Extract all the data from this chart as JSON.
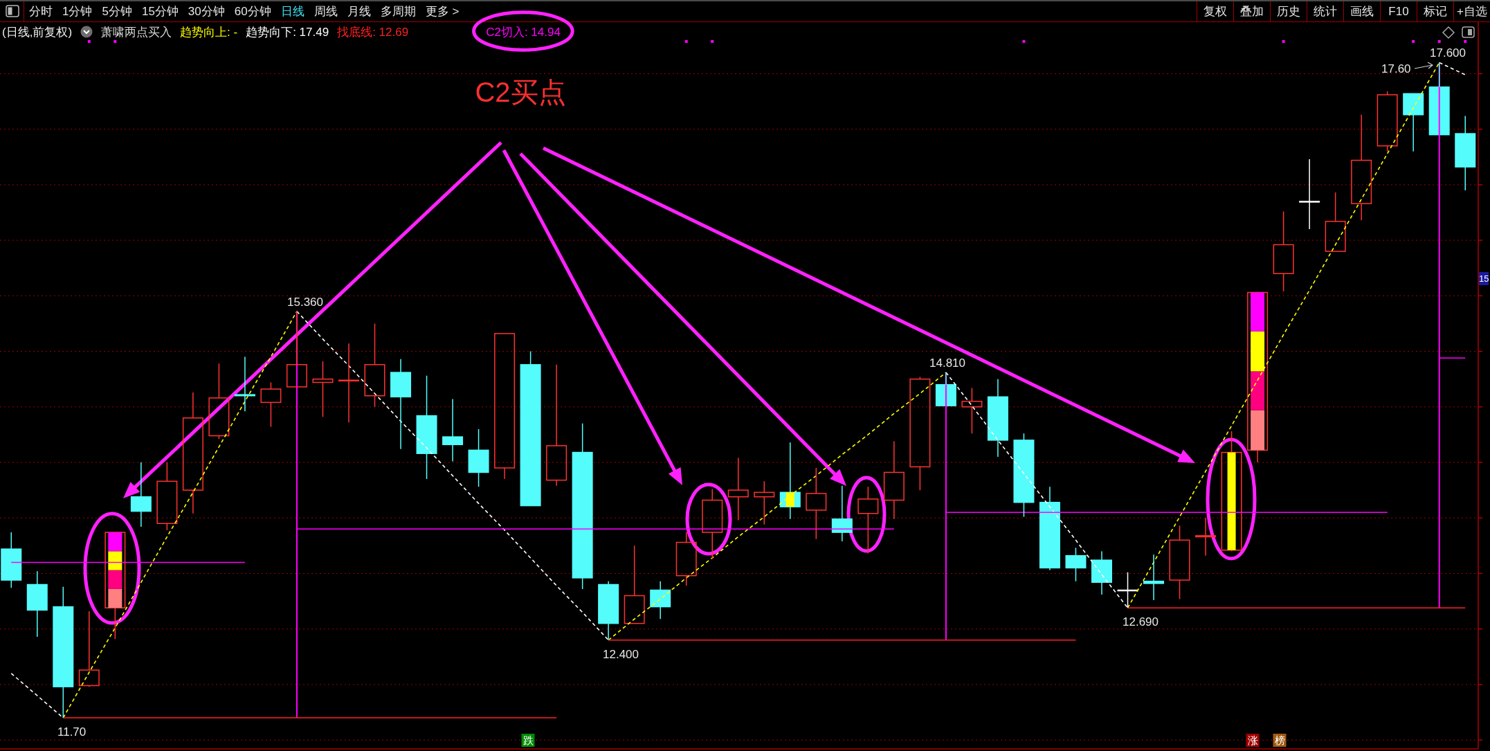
{
  "chart_data": {
    "type": "candlestick",
    "title": "(日线,前复权)",
    "subtitle": "萧啸两点买入",
    "categories": [
      null,
      null,
      null,
      null,
      null,
      null,
      null,
      null,
      null,
      null,
      null,
      null,
      null,
      null,
      null,
      null,
      null,
      null,
      null,
      null,
      null,
      null,
      null,
      null,
      null,
      null,
      null,
      null,
      null,
      null,
      null,
      null,
      null,
      null,
      null,
      null,
      null,
      null,
      null,
      null,
      null,
      null,
      null,
      null,
      null,
      null,
      null,
      null,
      null,
      null,
      null,
      null,
      null,
      null,
      null,
      null,
      null
    ],
    "ohlc": [
      [
        13.22,
        13.37,
        12.87,
        12.94
      ],
      [
        12.9,
        13.02,
        12.43,
        12.67
      ],
      [
        12.7,
        12.88,
        11.7,
        11.98
      ],
      [
        11.99,
        12.66,
        11.98,
        12.13
      ],
      [
        12.69,
        13.37,
        12.41,
        13.37
      ],
      [
        13.69,
        14.0,
        13.42,
        13.56
      ],
      [
        13.45,
        14.0,
        13.39,
        13.83
      ],
      [
        13.75,
        14.63,
        13.54,
        14.4
      ],
      [
        14.24,
        14.89,
        14.21,
        14.58
      ],
      [
        14.61,
        14.95,
        14.46,
        14.6
      ],
      [
        14.54,
        14.72,
        14.32,
        14.66
      ],
      [
        14.68,
        15.36,
        14.67,
        14.88
      ],
      [
        14.72,
        14.91,
        14.41,
        14.75
      ],
      [
        14.74,
        15.07,
        14.36,
        14.74
      ],
      [
        14.6,
        15.25,
        14.5,
        14.88
      ],
      [
        14.81,
        14.93,
        14.12,
        14.59
      ],
      [
        14.42,
        14.78,
        13.85,
        14.08
      ],
      [
        14.23,
        14.57,
        14.01,
        14.16
      ],
      [
        14.11,
        14.3,
        13.78,
        13.91
      ],
      [
        13.95,
        15.16,
        13.85,
        15.16
      ],
      [
        14.88,
        15.0,
        13.61,
        13.61
      ],
      [
        13.84,
        14.88,
        13.79,
        14.15
      ],
      [
        14.09,
        14.35,
        12.86,
        12.96
      ],
      [
        12.9,
        12.93,
        12.4,
        12.55
      ],
      [
        12.55,
        13.25,
        12.55,
        12.8
      ],
      [
        12.85,
        12.93,
        12.59,
        12.7
      ],
      [
        12.98,
        13.37,
        12.89,
        13.28
      ],
      [
        13.37,
        13.76,
        13.13,
        13.66
      ],
      [
        13.69,
        14.04,
        13.48,
        13.75
      ],
      [
        13.69,
        13.83,
        13.44,
        13.73
      ],
      [
        13.73,
        14.18,
        13.49,
        13.6
      ],
      [
        13.57,
        13.95,
        13.31,
        13.72
      ],
      [
        13.49,
        13.79,
        13.29,
        13.37
      ],
      [
        13.54,
        13.78,
        13.18,
        13.67
      ],
      [
        13.66,
        14.19,
        13.49,
        13.91
      ],
      [
        13.96,
        14.77,
        13.75,
        14.75
      ],
      [
        14.7,
        14.81,
        14.51,
        14.51
      ],
      [
        14.5,
        14.67,
        14.26,
        14.55
      ],
      [
        14.59,
        14.75,
        14.05,
        14.2
      ],
      [
        14.2,
        14.26,
        13.51,
        13.64
      ],
      [
        13.64,
        13.78,
        13.03,
        13.05
      ],
      [
        13.16,
        13.23,
        12.93,
        13.05
      ],
      [
        13.12,
        13.2,
        12.81,
        12.92
      ],
      [
        12.85,
        13.01,
        12.69,
        12.85
      ],
      [
        12.93,
        13.17,
        12.76,
        12.91
      ],
      [
        12.94,
        13.43,
        12.77,
        13.3
      ],
      [
        13.33,
        13.5,
        13.16,
        13.34
      ],
      [
        13.21,
        14.28,
        13.2,
        14.09
      ],
      [
        14.11,
        15.53,
        14.0,
        15.53
      ],
      [
        15.7,
        16.26,
        15.54,
        15.96
      ],
      [
        16.35,
        16.73,
        16.1,
        16.35
      ],
      [
        15.9,
        16.43,
        15.9,
        16.17
      ],
      [
        16.33,
        17.13,
        16.18,
        16.72
      ],
      [
        16.85,
        17.34,
        16.8,
        17.31
      ],
      [
        17.32,
        17.32,
        16.8,
        17.13
      ],
      [
        17.38,
        17.6,
        16.95,
        16.95
      ],
      [
        16.96,
        17.12,
        16.45,
        16.66
      ]
    ],
    "colors": [
      "#54fcfc",
      "#54fcfc",
      "#54fcfc",
      "#ff3232",
      "#ff3232",
      "#54fcfc",
      "#ff3232",
      "#ff3232",
      "#ff3232",
      "#54fcfc",
      "#ff3232",
      "#ff3232",
      "#ff3232",
      "#ff3232",
      "#ff3232",
      "#54fcfc",
      "#54fcfc",
      "#54fcfc",
      "#54fcfc",
      "#ff3232",
      "#54fcfc",
      "#ff3232",
      "#54fcfc",
      "#54fcfc",
      "#ff3232",
      "#54fcfc",
      "#ff3232",
      "#ff3232",
      "#ff3232",
      "#ff3232",
      "#54fcfc",
      "#ff3232",
      "#54fcfc",
      "#ff3232",
      "#ff3232",
      "#ff3232",
      "#54fcfc",
      "#ff3232",
      "#54fcfc",
      "#54fcfc",
      "#54fcfc",
      "#54fcfc",
      "#54fcfc",
      "#ffffff",
      "#54fcfc",
      "#ff3232",
      "#ff3232",
      "#ff3232",
      "#ff3232",
      "#ff3232",
      "#ffffff",
      "#ff3232",
      "#ff3232",
      "#ff3232",
      "#54fcfc",
      "#54fcfc",
      "#54fcfc"
    ],
    "series": [
      {
        "name": "趋势向上: -",
        "type": "line",
        "color": "#ffff00",
        "line_style": "dashed",
        "values": [
          null,
          null,
          11.7,
          12.11,
          12.51,
          12.92,
          13.33,
          13.73,
          14.14,
          14.55,
          14.95,
          15.36,
          null,
          null,
          null,
          null,
          null,
          null,
          null,
          null,
          null,
          null,
          null,
          12.4,
          12.59,
          12.77,
          12.96,
          13.14,
          13.33,
          13.51,
          13.7,
          13.88,
          14.07,
          14.25,
          14.44,
          14.62,
          14.81,
          null,
          null,
          null,
          null,
          null,
          null,
          12.69,
          13.1,
          13.51,
          13.92,
          14.33,
          14.74,
          15.15,
          15.55,
          15.96,
          16.37,
          16.78,
          17.19,
          17.6,
          null
        ]
      },
      {
        "name": "趋势向下: 17.49",
        "type": "line",
        "color": "#ffffff",
        "line_style": "dashed",
        "values": [
          12.1,
          11.9,
          11.7,
          null,
          null,
          null,
          null,
          null,
          null,
          null,
          null,
          15.36,
          15.11,
          14.87,
          14.62,
          14.37,
          14.13,
          13.88,
          13.63,
          13.39,
          13.14,
          12.89,
          12.65,
          12.4,
          null,
          null,
          null,
          null,
          null,
          null,
          null,
          null,
          null,
          null,
          null,
          null,
          14.81,
          14.51,
          14.2,
          13.9,
          13.6,
          13.3,
          12.99,
          12.69,
          null,
          null,
          null,
          null,
          null,
          null,
          null,
          null,
          null,
          null,
          null,
          17.6,
          17.49
        ]
      },
      {
        "name": "找底线: 12.69",
        "type": "line",
        "color": "#ff2020",
        "values": [
          null,
          null,
          11.7,
          11.7,
          11.7,
          11.7,
          11.7,
          11.7,
          11.7,
          11.7,
          11.7,
          11.7,
          11.7,
          11.7,
          11.7,
          11.7,
          11.7,
          11.7,
          11.7,
          11.7,
          11.7,
          11.7,
          null,
          12.4,
          12.4,
          12.4,
          12.4,
          12.4,
          12.4,
          12.4,
          12.4,
          12.4,
          12.4,
          12.4,
          12.4,
          12.4,
          12.4,
          12.4,
          12.4,
          12.4,
          12.4,
          12.4,
          null,
          12.69,
          12.69,
          12.69,
          12.69,
          12.69,
          12.69,
          12.69,
          12.69,
          12.69,
          12.69,
          12.69,
          12.69,
          12.69,
          12.69
        ]
      },
      {
        "name": "C2切入: 14.94",
        "type": "line",
        "color": "#ff00ff",
        "values": [
          13.1,
          13.1,
          13.1,
          13.1,
          13.1,
          13.1,
          13.1,
          13.1,
          13.1,
          13.1,
          null,
          13.4,
          13.4,
          13.4,
          13.4,
          13.4,
          13.4,
          13.4,
          13.4,
          13.4,
          13.4,
          13.4,
          13.4,
          13.4,
          13.4,
          13.4,
          13.4,
          13.4,
          13.4,
          13.4,
          13.4,
          13.4,
          13.4,
          13.4,
          13.4,
          null,
          13.55,
          13.55,
          13.55,
          13.55,
          13.55,
          13.55,
          13.55,
          13.55,
          13.55,
          13.55,
          13.55,
          13.55,
          13.55,
          13.55,
          13.55,
          13.55,
          13.55,
          13.55,
          null,
          14.94,
          14.94
        ]
      },
      {
        "type": "bar",
        "color": "#ff00ff",
        "values": [
          null,
          null,
          null,
          null,
          null,
          null,
          null,
          null,
          null,
          null,
          null,
          3.66,
          null,
          null,
          null,
          null,
          null,
          null,
          null,
          null,
          null,
          null,
          null,
          null,
          null,
          null,
          null,
          null,
          null,
          null,
          null,
          null,
          null,
          null,
          null,
          null,
          2.41,
          null,
          null,
          null,
          null,
          null,
          null,
          null,
          null,
          null,
          null,
          null,
          null,
          null,
          null,
          null,
          null,
          null,
          null,
          4.91,
          null
        ],
        "base": [
          null,
          null,
          null,
          null,
          null,
          null,
          null,
          null,
          null,
          null,
          null,
          11.7,
          null,
          null,
          null,
          null,
          null,
          null,
          null,
          null,
          null,
          null,
          null,
          null,
          null,
          null,
          null,
          null,
          null,
          null,
          null,
          null,
          null,
          null,
          null,
          null,
          12.4,
          null,
          null,
          null,
          null,
          null,
          null,
          null,
          null,
          null,
          null,
          null,
          null,
          null,
          null,
          null,
          null,
          null,
          null,
          12.69,
          null
        ]
      },
      {
        "type": "bar",
        "color": "#ff8080",
        "values": [
          null,
          null,
          null,
          null,
          0.17,
          null,
          null,
          null,
          null,
          null,
          null,
          null,
          null,
          null,
          null,
          null,
          null,
          null,
          null,
          null,
          null,
          null,
          null,
          null,
          null,
          null,
          null,
          null,
          null,
          null,
          null,
          null,
          null,
          null,
          null,
          null,
          null,
          null,
          null,
          null,
          null,
          null,
          null,
          null,
          null,
          null,
          null,
          null,
          0.36,
          null,
          null,
          null,
          null,
          null,
          null,
          null,
          null
        ],
        "base": [
          null,
          null,
          null,
          null,
          12.69,
          null,
          null,
          null,
          null,
          null,
          null,
          null,
          null,
          null,
          null,
          null,
          null,
          null,
          null,
          null,
          null,
          null,
          null,
          null,
          null,
          null,
          null,
          null,
          null,
          null,
          null,
          null,
          null,
          null,
          null,
          null,
          null,
          null,
          null,
          null,
          null,
          null,
          null,
          null,
          null,
          null,
          null,
          null,
          14.11,
          null,
          null,
          null,
          null,
          null,
          null,
          null,
          null
        ]
      },
      {
        "type": "bar",
        "color": "#ff0080",
        "values": [
          null,
          null,
          null,
          null,
          0.17,
          null,
          null,
          null,
          null,
          null,
          null,
          null,
          null,
          null,
          null,
          null,
          null,
          null,
          null,
          null,
          null,
          null,
          null,
          null,
          null,
          null,
          null,
          null,
          null,
          null,
          null,
          null,
          null,
          null,
          null,
          null,
          null,
          null,
          null,
          null,
          null,
          null,
          null,
          null,
          null,
          null,
          null,
          null,
          0.35,
          null,
          null,
          null,
          null,
          null,
          null,
          null,
          null
        ],
        "base": [
          null,
          null,
          null,
          null,
          12.86,
          null,
          null,
          null,
          null,
          null,
          null,
          null,
          null,
          null,
          null,
          null,
          null,
          null,
          null,
          null,
          null,
          null,
          null,
          null,
          null,
          null,
          null,
          null,
          null,
          null,
          null,
          null,
          null,
          null,
          null,
          null,
          null,
          null,
          null,
          null,
          null,
          null,
          null,
          null,
          null,
          null,
          null,
          null,
          14.47,
          null,
          null,
          null,
          null,
          null,
          null,
          null,
          null
        ]
      },
      {
        "type": "bar",
        "color": "#ffff00",
        "values": [
          null,
          null,
          null,
          null,
          0.17,
          null,
          null,
          null,
          null,
          null,
          null,
          null,
          null,
          null,
          null,
          null,
          null,
          null,
          null,
          null,
          null,
          null,
          null,
          null,
          null,
          null,
          null,
          null,
          null,
          null,
          null,
          null,
          null,
          null,
          null,
          null,
          null,
          null,
          null,
          null,
          null,
          null,
          null,
          null,
          null,
          null,
          null,
          null,
          0.36,
          null,
          null,
          null,
          null,
          null,
          null,
          null,
          null
        ],
        "base": [
          null,
          null,
          null,
          null,
          13.03,
          null,
          null,
          null,
          null,
          null,
          null,
          null,
          null,
          null,
          null,
          null,
          null,
          null,
          null,
          null,
          null,
          null,
          null,
          null,
          null,
          null,
          null,
          null,
          null,
          null,
          null,
          null,
          null,
          null,
          null,
          null,
          null,
          null,
          null,
          null,
          null,
          null,
          null,
          null,
          null,
          null,
          null,
          null,
          14.82,
          null,
          null,
          null,
          null,
          null,
          null,
          null,
          null
        ]
      },
      {
        "type": "bar",
        "color": "#ff00ff",
        "values": [
          null,
          null,
          null,
          null,
          0.17,
          null,
          null,
          null,
          null,
          null,
          null,
          null,
          null,
          null,
          null,
          null,
          null,
          null,
          null,
          null,
          null,
          null,
          null,
          null,
          null,
          null,
          null,
          null,
          null,
          null,
          null,
          null,
          null,
          null,
          null,
          null,
          null,
          null,
          null,
          null,
          null,
          null,
          null,
          null,
          null,
          null,
          null,
          null,
          0.35,
          null,
          null,
          null,
          null,
          null,
          null,
          null,
          null
        ],
        "base": [
          null,
          null,
          null,
          null,
          13.2,
          null,
          null,
          null,
          null,
          null,
          null,
          null,
          null,
          null,
          null,
          null,
          null,
          null,
          null,
          null,
          null,
          null,
          null,
          null,
          null,
          null,
          null,
          null,
          null,
          null,
          null,
          null,
          null,
          null,
          null,
          null,
          null,
          null,
          null,
          null,
          null,
          null,
          null,
          null,
          null,
          null,
          null,
          null,
          15.18,
          null,
          null,
          null,
          null,
          null,
          null,
          null,
          null
        ]
      },
      {
        "type": "bar",
        "color": "#ffff00",
        "values": [
          null,
          null,
          null,
          null,
          null,
          null,
          null,
          null,
          null,
          null,
          null,
          null,
          null,
          null,
          null,
          null,
          null,
          null,
          null,
          null,
          null,
          null,
          null,
          null,
          null,
          null,
          null,
          null,
          null,
          null,
          0.13,
          null,
          null,
          null,
          null,
          null,
          null,
          null,
          null,
          null,
          null,
          null,
          null,
          null,
          null,
          null,
          null,
          0.88,
          null,
          null,
          null,
          null,
          null,
          null,
          null,
          null,
          null
        ],
        "base": [
          null,
          null,
          null,
          null,
          null,
          null,
          null,
          null,
          null,
          null,
          null,
          null,
          null,
          null,
          null,
          null,
          null,
          null,
          null,
          null,
          null,
          null,
          null,
          null,
          null,
          null,
          null,
          null,
          null,
          null,
          13.6,
          null,
          null,
          null,
          null,
          null,
          null,
          null,
          null,
          null,
          null,
          null,
          null,
          null,
          null,
          null,
          null,
          13.21,
          null,
          null,
          null,
          null,
          null,
          null,
          null,
          null,
          null
        ]
      },
      {
        "type": "scatter",
        "color": "#ff00ff",
        "marker": "square",
        "values": [
          null,
          null,
          null,
          17.79,
          17.79,
          null,
          null,
          null,
          null,
          null,
          null,
          null,
          null,
          null,
          null,
          null,
          null,
          null,
          null,
          null,
          null,
          null,
          null,
          null,
          null,
          null,
          17.79,
          17.79,
          null,
          null,
          null,
          null,
          null,
          null,
          null,
          null,
          null,
          null,
          null,
          17.79,
          null,
          null,
          null,
          null,
          null,
          null,
          null,
          null,
          null,
          17.79,
          null,
          null,
          null,
          null,
          17.79,
          17.79,
          17.79
        ]
      }
    ],
    "ylim": [
      11.42,
      17.97
    ],
    "yticks": [
      11.5,
      12,
      12.5,
      13,
      13.5,
      14,
      14.5,
      15,
      15.5,
      16,
      16.5,
      17,
      17.5
    ],
    "tick_labels": false,
    "grid": "y",
    "legend": "top left",
    "annotations": [
      "分时",
      "1分钟",
      "5分钟",
      "15分钟",
      "30分钟",
      "60分钟",
      "日线",
      "周线",
      "月线",
      "多周期",
      "更多 >",
      "复权",
      "叠加",
      "历史",
      "统计",
      "画线",
      "F10",
      "标记",
      "+自选",
      "C2买点",
      "跌",
      "涨",
      "榜",
      "15",
      "15.360",
      "12.400",
      "14.810",
      "12.690",
      "17.600",
      "17.60",
      "11.70"
    ]
  }
}
